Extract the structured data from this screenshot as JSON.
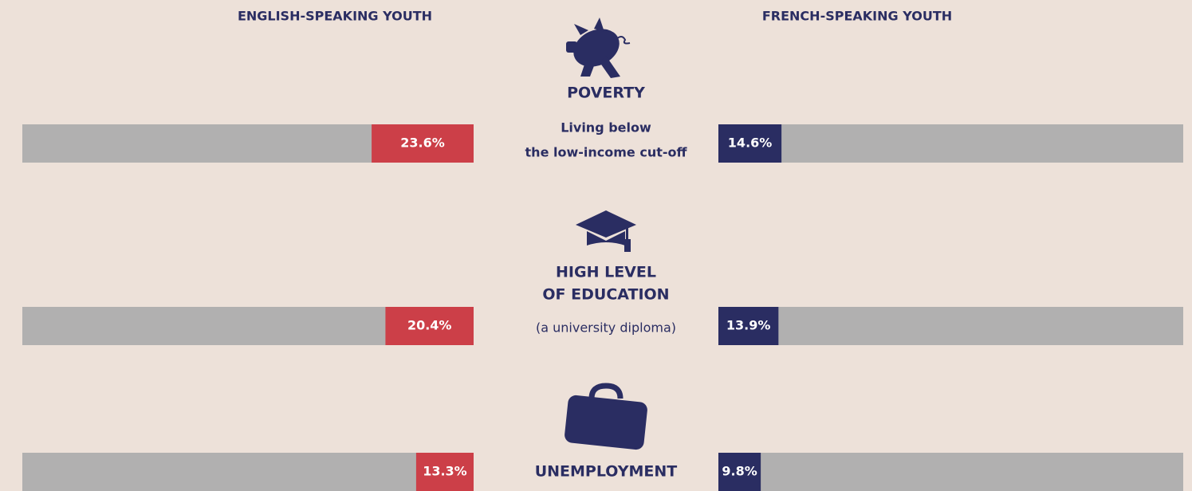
{
  "chart_data": {
    "type": "butterfly",
    "categories": [
      [
        "POVERTY"
      ],
      [
        "HIGH LEVEL",
        "OF EDUCATION"
      ],
      [
        "UNEMPLOYMENT"
      ]
    ],
    "notes": [
      [
        "Living below",
        "the low-income cut-off"
      ],
      [
        "(a university diploma)"
      ],
      null
    ],
    "series": [
      {
        "name": "ENGLISH-SPEAKING YOUTH",
        "color": "#cc3f48",
        "values": [
          23.6,
          20.4,
          13.3
        ],
        "value_labels": [
          "23.6%",
          "20.4%",
          "13.3%"
        ]
      },
      {
        "name": "FRENCH-SPEAKING YOUTH",
        "color": "#2a2d62",
        "values": [
          14.6,
          13.9,
          9.8
        ],
        "value_labels": [
          "14.6%",
          "13.9%",
          "9.8%"
        ]
      }
    ],
    "track_color": "#b1b0b0"
  }
}
